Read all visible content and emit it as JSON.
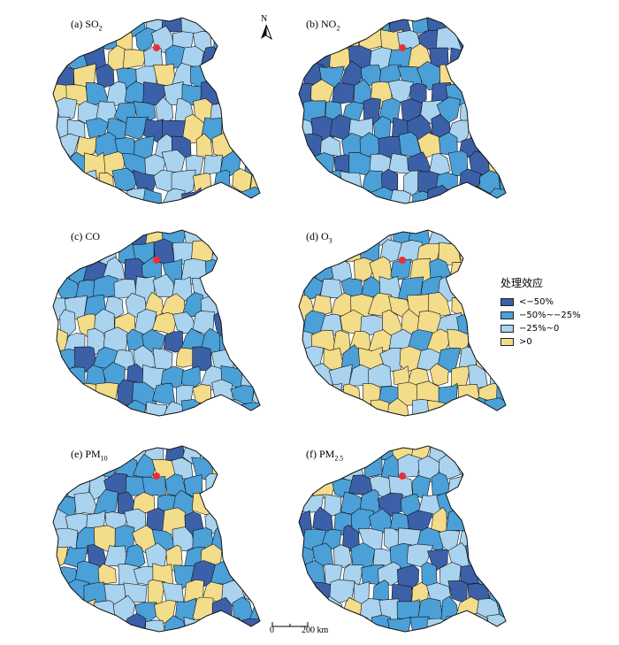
{
  "figure": {
    "panels": [
      {
        "id": "a",
        "prefix": "(a) ",
        "base": "SO",
        "sub": "2",
        "sup": "",
        "distribution": [
          0.12,
          0.3,
          0.33,
          0.25
        ]
      },
      {
        "id": "b",
        "prefix": "(b) ",
        "base": "NO",
        "sub": "2",
        "sup": "",
        "distribution": [
          0.34,
          0.4,
          0.2,
          0.06
        ]
      },
      {
        "id": "c",
        "prefix": "(c) ",
        "base": "CO",
        "sub": "",
        "sup": "",
        "distribution": [
          0.15,
          0.35,
          0.38,
          0.12
        ]
      },
      {
        "id": "d",
        "prefix": "(d) ",
        "base": "O",
        "sub": "3",
        "sup": "",
        "distribution": [
          0.03,
          0.2,
          0.33,
          0.44
        ]
      },
      {
        "id": "e",
        "prefix": "(e) ",
        "base": "PM",
        "sub": "10",
        "sup": "",
        "distribution": [
          0.1,
          0.38,
          0.4,
          0.12
        ]
      },
      {
        "id": "f",
        "prefix": "(f) ",
        "base": "PM",
        "sub": "2.5",
        "sup": "",
        "distribution": [
          0.09,
          0.4,
          0.39,
          0.12
        ]
      }
    ]
  },
  "legend": {
    "title": "处理效应",
    "items": [
      {
        "label": "<−50%",
        "color": "#3c60a8"
      },
      {
        "label": "−50%~−25%",
        "color": "#4ba0d8"
      },
      {
        "label": "−25%~0",
        "color": "#a9d3ef"
      },
      {
        "label": ">0",
        "color": "#f3dc8a"
      }
    ]
  },
  "north_arrow": {
    "letter": "N"
  },
  "scale_bar": {
    "zero_label": "0",
    "max_label": "200 km"
  },
  "colors": {
    "border": "#111111",
    "marker": "#e8303a",
    "background": "#ffffff"
  }
}
